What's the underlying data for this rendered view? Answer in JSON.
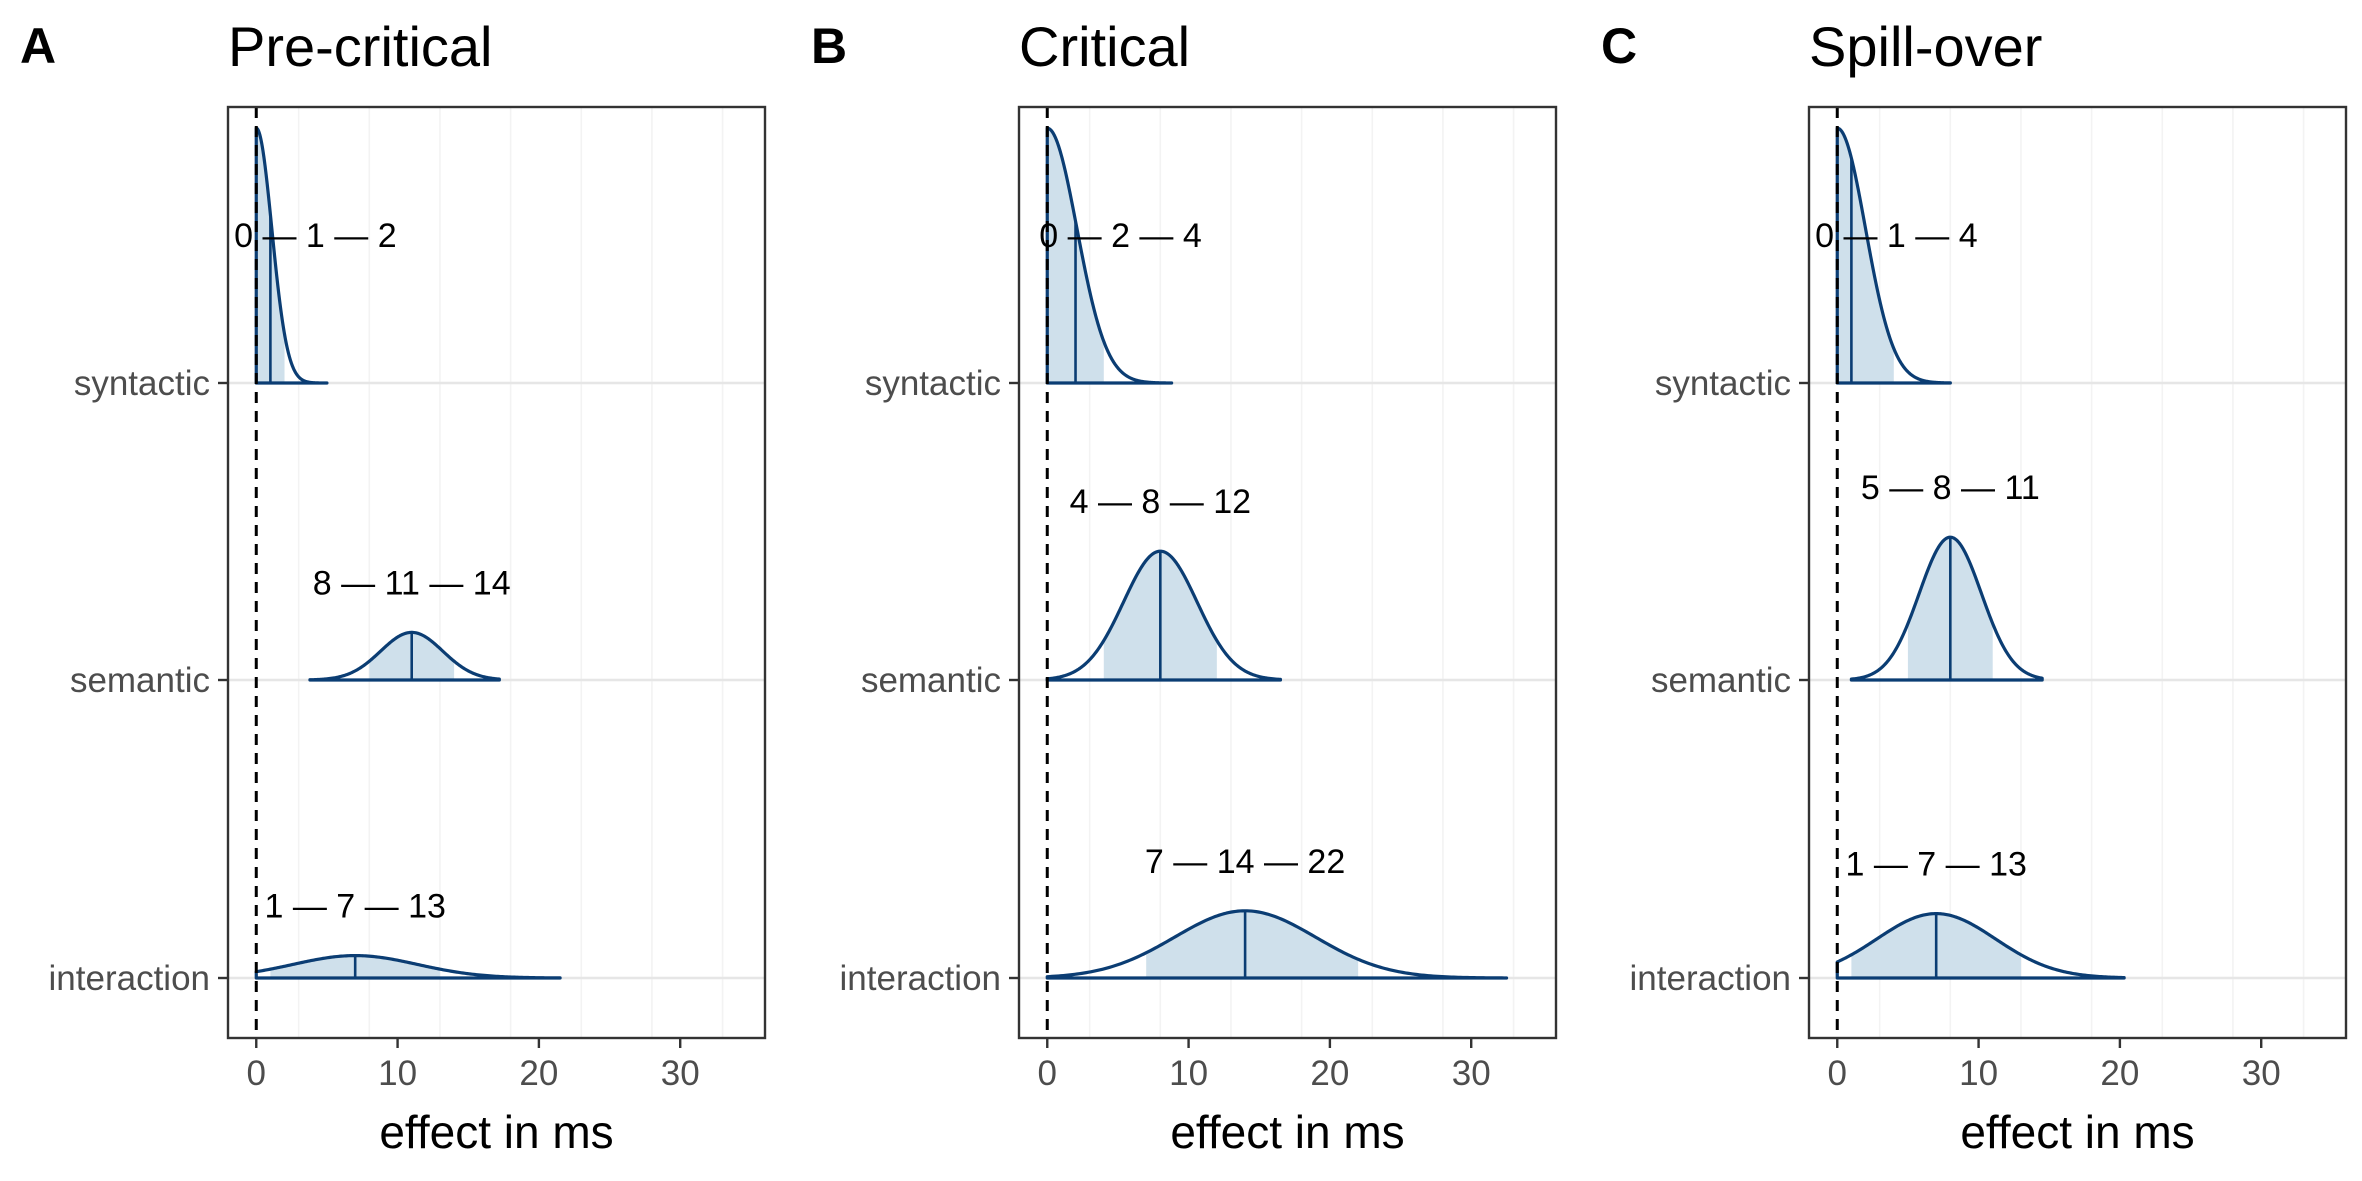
{
  "colors": {
    "line": "#0b3d73",
    "fill": "#cfe0eb",
    "grid_major": "#e6e6e6",
    "grid_minor": "#f3f3f3",
    "frame": "#333333",
    "ref_line": "#000000"
  },
  "chart_data": [
    {
      "type": "density",
      "panel": "A",
      "title": "Pre-critical",
      "xlabel": "effect in ms",
      "ylabel": "",
      "xlim": [
        -2,
        36
      ],
      "x_ticks": [
        0,
        10,
        20,
        30
      ],
      "reference_line_x": 0,
      "grid": true,
      "series": [
        {
          "name": "syntactic",
          "lower": 0,
          "median": 1,
          "upper": 2,
          "label": "0 — 1 — 2",
          "shape": "halfnormal",
          "sd": 1.1,
          "extent_max": 5.0,
          "rel_height": 0.91
        },
        {
          "name": "semantic",
          "lower": 8,
          "median": 11,
          "upper": 14,
          "label": "8 — 11 — 14",
          "shape": "normal",
          "sd": 2.2,
          "extent_min": 3.8,
          "extent_max": 17.2,
          "rel_height": 0.17
        },
        {
          "name": "interaction",
          "lower": 1,
          "median": 7,
          "upper": 13,
          "label": "1 — 7 — 13",
          "shape": "normal",
          "sd": 4.4,
          "extent_min": 0,
          "extent_max": 21.5,
          "rel_height": 0.08
        }
      ]
    },
    {
      "type": "density",
      "panel": "B",
      "title": "Critical",
      "xlabel": "effect in ms",
      "ylabel": "",
      "xlim": [
        -2,
        36
      ],
      "x_ticks": [
        0,
        10,
        20,
        30
      ],
      "reference_line_x": 0,
      "grid": true,
      "series": [
        {
          "name": "syntactic",
          "lower": 0,
          "median": 2,
          "upper": 4,
          "label": "0 — 2 — 4",
          "shape": "halfnormal",
          "sd": 2.1,
          "extent_max": 8.8,
          "rel_height": 0.91
        },
        {
          "name": "semantic",
          "lower": 4,
          "median": 8,
          "upper": 12,
          "label": "4 — 8 — 12",
          "shape": "normal",
          "sd": 2.6,
          "extent_min": 0,
          "extent_max": 16.5,
          "rel_height": 0.46
        },
        {
          "name": "interaction",
          "lower": 7,
          "median": 14,
          "upper": 22,
          "label": "7 — 14 — 22",
          "shape": "normal",
          "sd": 5.0,
          "extent_min": 0,
          "extent_max": 32.5,
          "rel_height": 0.24
        }
      ]
    },
    {
      "type": "density",
      "panel": "C",
      "title": "Spill-over",
      "xlabel": "effect in ms",
      "ylabel": "",
      "xlim": [
        -2,
        36
      ],
      "x_ticks": [
        0,
        10,
        20,
        30
      ],
      "reference_line_x": 0,
      "grid": true,
      "series": [
        {
          "name": "syntactic",
          "lower": 0,
          "median": 1,
          "upper": 4,
          "label": "0 — 1 — 4",
          "shape": "halfnormal",
          "sd": 2.0,
          "extent_max": 8.0,
          "rel_height": 0.91
        },
        {
          "name": "semantic",
          "lower": 5,
          "median": 8,
          "upper": 11,
          "label": "5 — 8 — 11",
          "shape": "normal",
          "sd": 2.2,
          "extent_min": 1.0,
          "extent_max": 14.5,
          "rel_height": 0.51
        },
        {
          "name": "interaction",
          "lower": 1,
          "median": 7,
          "upper": 13,
          "label": "1 — 7 — 13",
          "shape": "normal",
          "sd": 4.2,
          "extent_min": 0,
          "extent_max": 20.3,
          "rel_height": 0.23
        }
      ]
    }
  ]
}
